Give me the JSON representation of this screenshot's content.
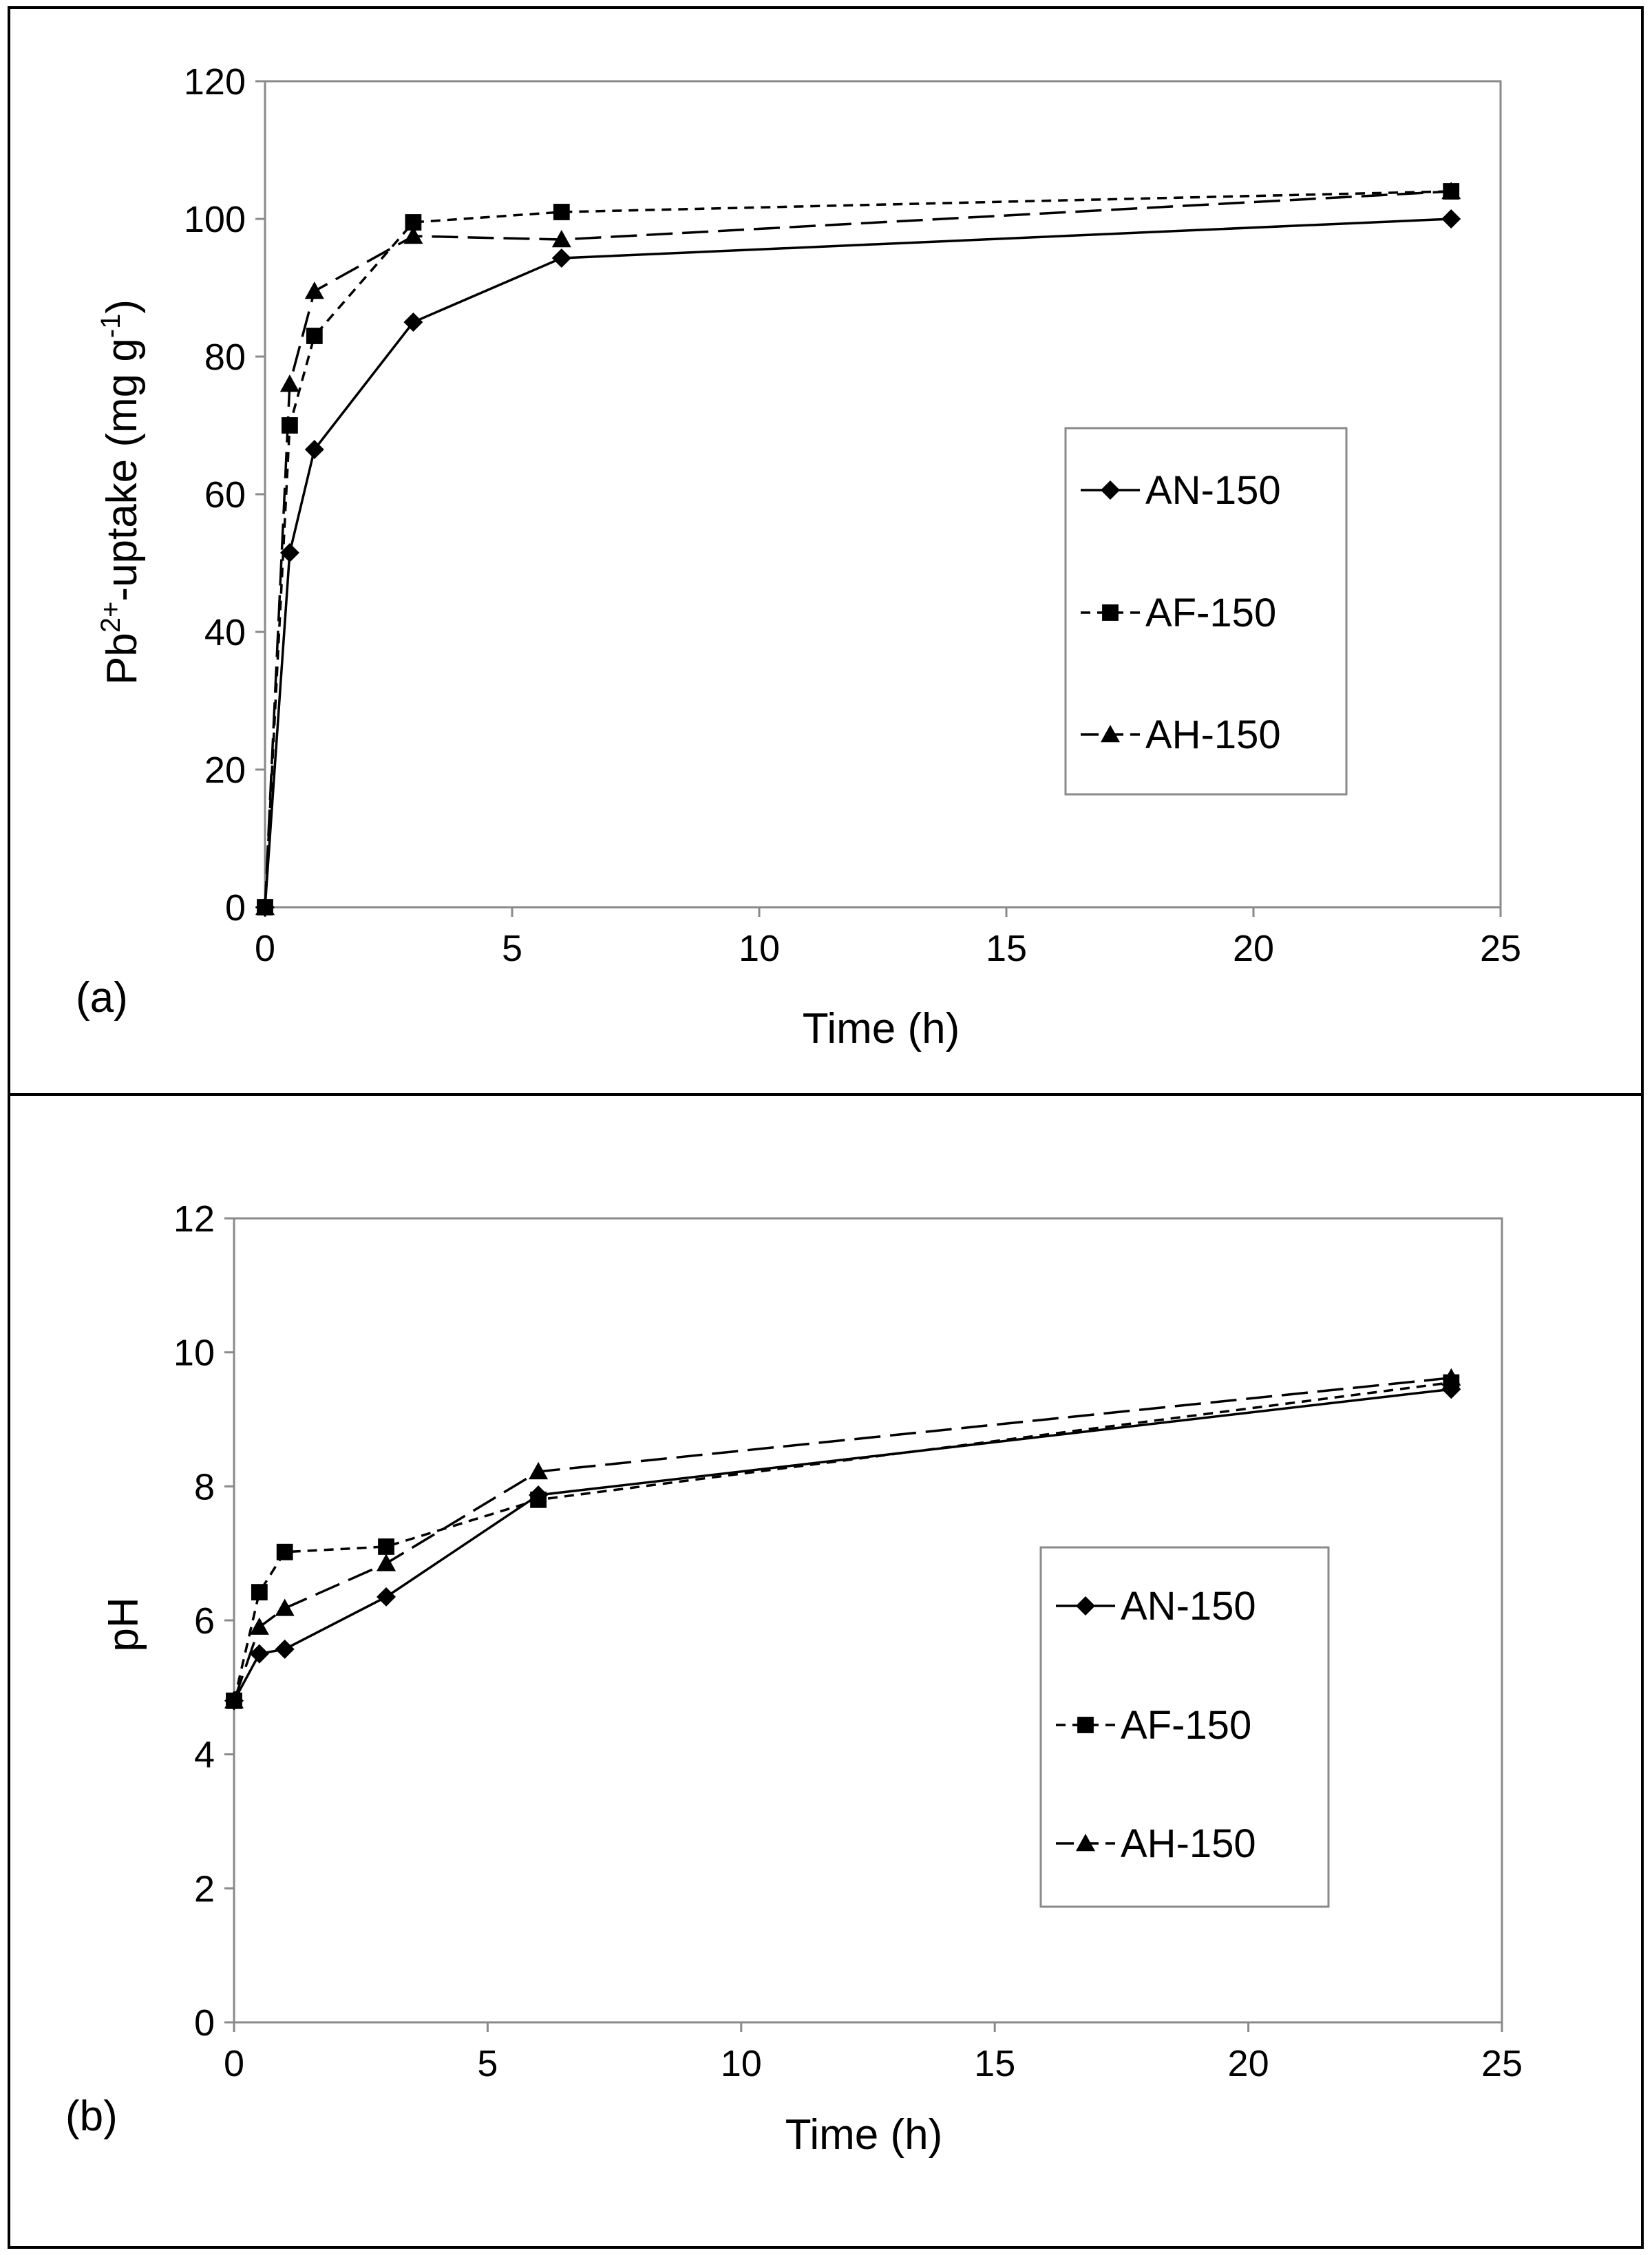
{
  "chart_data": [
    {
      "type": "line",
      "panel_label": "(a)",
      "title": "",
      "xlabel": "Time (h)",
      "ylabel": "Pb²⁺-uptake (mg g⁻¹)",
      "ylabel_parts": {
        "base": "Pb",
        "sup1": "2+",
        "mid": "-uptake (mg g",
        "sup2": "-1",
        "end": ")"
      },
      "xlim": [
        0,
        25
      ],
      "ylim": [
        0,
        120
      ],
      "xticks": [
        0,
        5,
        10,
        15,
        20,
        25
      ],
      "yticks": [
        0,
        20,
        40,
        60,
        80,
        100,
        120
      ],
      "grid": false,
      "legend_position": "center-right",
      "x": [
        0,
        0.5,
        1,
        3,
        6,
        24
      ],
      "series": [
        {
          "name": "AN-150",
          "marker": "diamond",
          "dash": "solid",
          "values": [
            0,
            51.5,
            66.5,
            85,
            94.3,
            100
          ]
        },
        {
          "name": "AF-150",
          "marker": "square",
          "dash": "short-dash",
          "values": [
            0,
            70,
            83,
            99.5,
            101,
            104
          ]
        },
        {
          "name": "AH-150",
          "marker": "triangle",
          "dash": "long-dash",
          "values": [
            0,
            76,
            89.5,
            97.5,
            97,
            104
          ]
        }
      ]
    },
    {
      "type": "line",
      "panel_label": "(b)",
      "title": "",
      "xlabel": "Time (h)",
      "ylabel": "pH",
      "xlim": [
        0,
        25
      ],
      "ylim": [
        0,
        12
      ],
      "xticks": [
        0,
        5,
        10,
        15,
        20,
        25
      ],
      "yticks": [
        0,
        2,
        4,
        6,
        8,
        10,
        12
      ],
      "grid": false,
      "legend_position": "center-right",
      "x": [
        0,
        0.5,
        1,
        3,
        6,
        24
      ],
      "series": [
        {
          "name": "AN-150",
          "marker": "diamond",
          "dash": "solid",
          "values": [
            4.8,
            5.5,
            5.57,
            6.35,
            7.87,
            9.45
          ]
        },
        {
          "name": "AF-150",
          "marker": "square",
          "dash": "short-dash",
          "values": [
            4.8,
            6.42,
            7.02,
            7.1,
            7.8,
            9.55
          ]
        },
        {
          "name": "AH-150",
          "marker": "triangle",
          "dash": "long-dash",
          "values": [
            4.8,
            5.9,
            6.18,
            6.85,
            8.22,
            9.62
          ]
        }
      ]
    }
  ]
}
